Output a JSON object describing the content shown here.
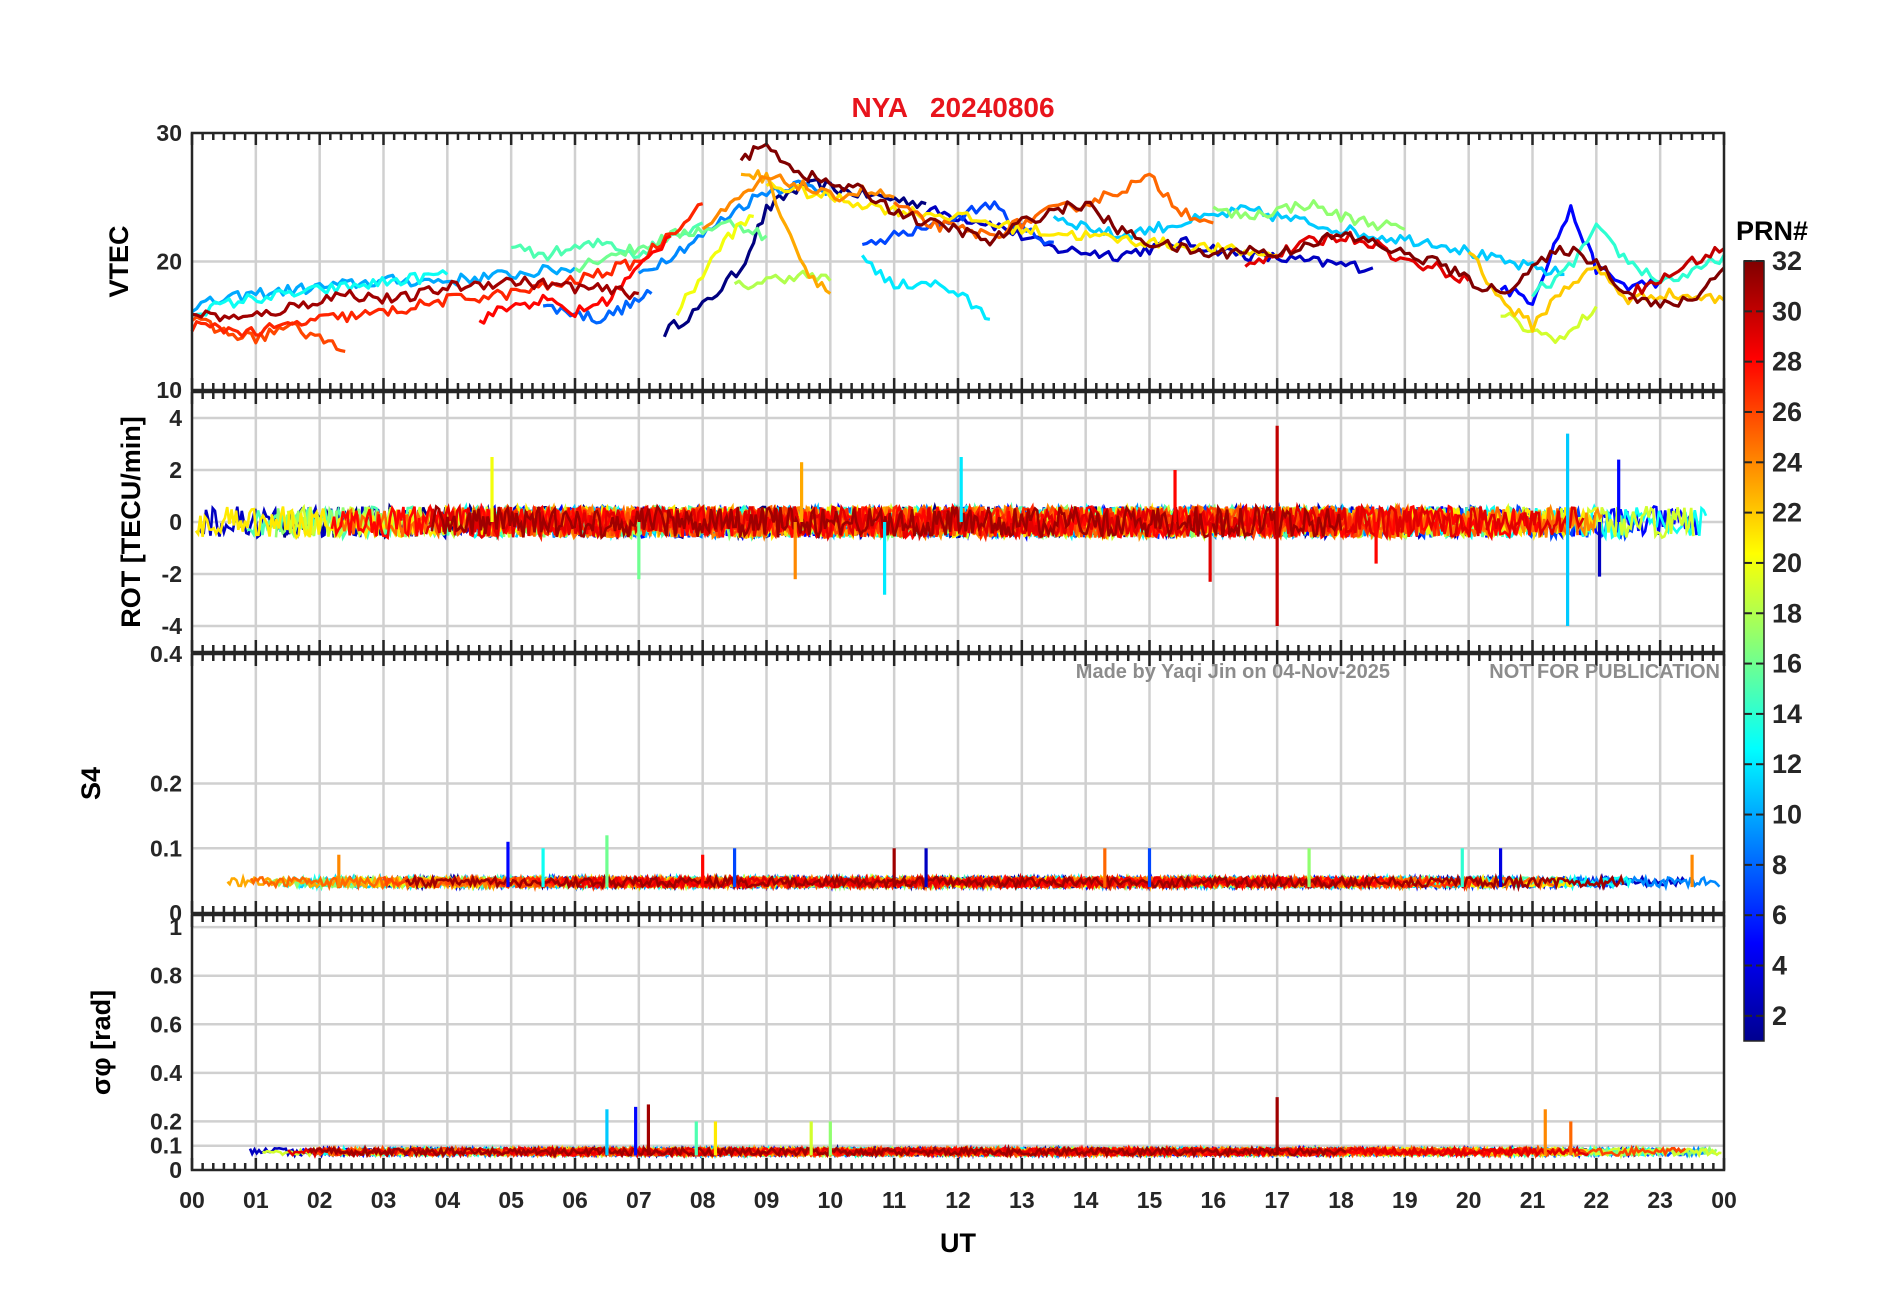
{
  "title": {
    "station": "NYA",
    "date": "20240806",
    "color": "#e8141c"
  },
  "watermark": {
    "author": "Made by Yaqi Jin on 04-Nov-2025",
    "notice": "NOT FOR PUBLICATION"
  },
  "colorbar": {
    "label": "PRN#",
    "ticks": [
      "2",
      "4",
      "6",
      "8",
      "10",
      "12",
      "14",
      "16",
      "18",
      "20",
      "22",
      "24",
      "26",
      "28",
      "30",
      "32"
    ],
    "range": [
      1,
      32
    ],
    "colormap": "jet"
  },
  "chart_data": [
    {
      "type": "line",
      "name": "vtec",
      "ylabel": "VTEC",
      "ylim": [
        10,
        30
      ],
      "yticks": [
        "10",
        "20",
        "30"
      ],
      "xlim": [
        0,
        24
      ],
      "xlabel": "",
      "grid": true,
      "series": [
        {
          "prn": 1,
          "x": [
            7.4,
            8.0,
            8.6,
            9.0,
            9.4,
            9.8,
            10.2,
            10.8,
            11.5
          ],
          "values": [
            14.5,
            16.5,
            19.5,
            24.0,
            25.5,
            26.0,
            25.5,
            25.0,
            24.5
          ]
        },
        {
          "prn": 3,
          "x": [
            11.5,
            12.5,
            13.5,
            14.5,
            15.5,
            16.5,
            17.5,
            18.5
          ],
          "values": [
            24.0,
            23.0,
            21.0,
            20.5,
            21.5,
            20.5,
            20.0,
            19.5
          ]
        },
        {
          "prn": 5,
          "x": [
            20.5,
            21.0,
            21.4,
            21.6,
            22.0,
            22.5,
            23.0
          ],
          "values": [
            18.0,
            17.0,
            22.0,
            24.0,
            19.5,
            18.0,
            18.5
          ]
        },
        {
          "prn": 7,
          "x": [
            10.5,
            11.0,
            11.5,
            12.0,
            12.5,
            13.0,
            13.5
          ],
          "values": [
            21.0,
            22.0,
            22.5,
            23.5,
            24.5,
            22.5,
            21.5
          ]
        },
        {
          "prn": 8,
          "x": [
            5.5,
            6.0,
            6.4,
            6.8,
            7.2
          ],
          "values": [
            16.5,
            16.0,
            15.5,
            16.5,
            17.5
          ]
        },
        {
          "prn": 9,
          "x": [
            7.0,
            7.5,
            8.0,
            8.5,
            9.0,
            9.5,
            10.0
          ],
          "values": [
            19.0,
            20.5,
            22.0,
            24.0,
            25.5,
            26.0,
            25.5
          ]
        },
        {
          "prn": 10,
          "x": [
            0.0,
            1.0,
            2.0,
            3.0,
            4.0,
            5.0,
            6.0
          ],
          "values": [
            16.5,
            17.5,
            18.0,
            18.5,
            18.5,
            19.0,
            19.5
          ]
        },
        {
          "prn": 11,
          "x": [
            13.5,
            14.5,
            15.5,
            16.5,
            17.5,
            18.5,
            19.5,
            20.5,
            21.5
          ],
          "values": [
            23.5,
            22.0,
            23.0,
            24.0,
            23.0,
            22.0,
            21.5,
            20.0,
            19.0
          ]
        },
        {
          "prn": 12,
          "x": [
            10.5,
            11.0,
            11.5,
            12.0,
            12.5
          ],
          "values": [
            20.5,
            18.0,
            18.5,
            17.5,
            15.5
          ]
        },
        {
          "prn": 13,
          "x": [
            0.0,
            0.8,
            1.6,
            2.4,
            3.2,
            4.0
          ],
          "values": [
            16.0,
            17.0,
            17.5,
            18.0,
            18.5,
            19.0
          ]
        },
        {
          "prn": 14,
          "x": [
            21.0,
            21.5,
            22.0,
            22.5,
            23.0,
            23.5,
            24.0
          ],
          "values": [
            17.5,
            19.0,
            22.5,
            20.0,
            18.5,
            19.0,
            20.5
          ]
        },
        {
          "prn": 15,
          "x": [
            5.0,
            5.5,
            6.0,
            6.5,
            7.0,
            7.5,
            8.0
          ],
          "values": [
            21.0,
            20.5,
            21.0,
            21.5,
            20.5,
            22.0,
            23.0
          ]
        },
        {
          "prn": 16,
          "x": [
            6.0,
            6.5,
            7.0,
            7.5,
            8.0,
            8.5,
            9.0
          ],
          "values": [
            19.5,
            20.5,
            21.0,
            22.0,
            22.5,
            23.0,
            22.0
          ]
        },
        {
          "prn": 17,
          "x": [
            16.0,
            16.5,
            17.0,
            17.5,
            18.0,
            18.5,
            19.0
          ],
          "values": [
            24.0,
            23.5,
            24.0,
            24.5,
            23.5,
            23.0,
            22.5
          ]
        },
        {
          "prn": 18,
          "x": [
            8.5,
            9.0,
            9.5,
            10.0
          ],
          "values": [
            18.0,
            18.5,
            19.0,
            18.5
          ]
        },
        {
          "prn": 19,
          "x": [
            20.5,
            21.0,
            21.5,
            22.0
          ],
          "values": [
            16.0,
            14.5,
            14.0,
            16.5
          ]
        },
        {
          "prn": 20,
          "x": [
            7.6,
            8.0,
            8.4,
            8.8
          ],
          "values": [
            16.0,
            19.0,
            22.0,
            23.5
          ]
        },
        {
          "prn": 21,
          "x": [
            9.0,
            10.0,
            11.0,
            12.0,
            13.0,
            14.0,
            15.0,
            16.0,
            17.0
          ],
          "values": [
            26.0,
            25.0,
            24.0,
            23.5,
            22.5,
            22.0,
            21.5,
            21.0,
            20.5
          ]
        },
        {
          "prn": 22,
          "x": [
            20.0,
            20.5,
            21.0,
            21.5,
            22.0,
            22.5,
            23.0,
            24.0
          ],
          "values": [
            21.0,
            17.0,
            15.0,
            18.0,
            19.5,
            17.0,
            17.5,
            17.0
          ]
        },
        {
          "prn": 23,
          "x": [
            8.6,
            9.0,
            9.3,
            9.6,
            10.0
          ],
          "values": [
            27.0,
            26.5,
            23.0,
            19.5,
            17.5
          ]
        },
        {
          "prn": 24,
          "x": [
            8.0,
            8.5,
            9.0,
            9.5,
            10.0,
            10.5,
            11.0
          ],
          "values": [
            22.5,
            24.5,
            26.5,
            26.0,
            25.0,
            25.5,
            25.0
          ]
        },
        {
          "prn": 25,
          "x": [
            11.0,
            11.5,
            12.0,
            12.5,
            13.0,
            13.5,
            14.0,
            14.5,
            15.0,
            15.5,
            16.0
          ],
          "values": [
            24.5,
            23.0,
            22.5,
            22.0,
            23.0,
            24.0,
            24.5,
            25.5,
            26.5,
            24.0,
            23.0
          ]
        },
        {
          "prn": 26,
          "x": [
            0.0,
            0.5,
            1.0,
            1.5,
            2.0,
            2.4
          ],
          "values": [
            15.5,
            14.5,
            14.0,
            15.0,
            14.0,
            13.0
          ]
        },
        {
          "prn": 27,
          "x": [
            0.0,
            1.0,
            2.0,
            3.0,
            4.0,
            5.0,
            6.0,
            7.0,
            8.0
          ],
          "values": [
            15.0,
            14.5,
            15.5,
            16.0,
            17.0,
            17.5,
            18.5,
            20.0,
            24.5
          ]
        },
        {
          "prn": 28,
          "x": [
            4.5,
            5.0,
            5.5,
            6.0,
            6.5,
            7.0,
            7.5
          ],
          "values": [
            15.5,
            16.5,
            17.0,
            16.0,
            17.0,
            19.5,
            22.0
          ]
        },
        {
          "prn": 29,
          "x": [
            16.5,
            17.0,
            17.5,
            18.0,
            18.5,
            19.0,
            19.5,
            20.0
          ],
          "values": [
            20.0,
            20.5,
            21.5,
            22.0,
            21.5,
            20.0,
            19.5,
            18.5
          ]
        },
        {
          "prn": 30,
          "x": [
            22.5,
            23.0,
            23.5,
            24.0
          ],
          "values": [
            17.5,
            18.5,
            20.0,
            21.0
          ]
        },
        {
          "prn": 31,
          "x": [
            0.0,
            0.8,
            1.6,
            2.4,
            3.2,
            4.0,
            5.0,
            6.0,
            7.0
          ],
          "values": [
            16.0,
            15.5,
            16.5,
            17.5,
            17.0,
            18.0,
            18.5,
            18.0,
            17.5
          ]
        },
        {
          "prn": 32,
          "x": [
            8.6,
            9.0,
            9.5,
            10.0,
            10.5,
            11.0,
            11.5,
            12.0,
            12.5,
            13.0,
            13.5,
            14.0,
            14.5,
            15.0,
            15.5,
            16.0,
            16.5,
            17.0,
            17.5,
            18.0,
            18.5,
            19.0,
            19.5,
            20.0,
            20.5,
            21.0,
            21.5,
            22.0,
            22.5,
            23.0,
            23.5,
            24.0
          ],
          "values": [
            28.0,
            29.0,
            27.0,
            26.0,
            25.5,
            24.0,
            23.0,
            22.5,
            21.5,
            23.0,
            24.0,
            24.5,
            22.5,
            21.5,
            21.0,
            20.5,
            21.0,
            20.5,
            21.5,
            22.0,
            21.5,
            20.5,
            20.0,
            18.5,
            17.5,
            19.5,
            21.0,
            20.0,
            17.5,
            16.5,
            17.0,
            19.5
          ]
        }
      ]
    },
    {
      "type": "line",
      "name": "rot",
      "ylabel": "ROT [TECU/min]",
      "ylim": [
        -5,
        5
      ],
      "yticks": [
        "-4",
        "-2",
        "0",
        "2",
        "4"
      ],
      "xlim": [
        0,
        24
      ],
      "grid": true,
      "noise_baseline": 0,
      "noise_amplitude": 0.6,
      "spikes": [
        {
          "x": 17.0,
          "value": 3.7,
          "prn": 30
        },
        {
          "x": 17.0,
          "value": -4.0,
          "prn": 30
        },
        {
          "x": 21.55,
          "value": 3.4,
          "prn": 11
        },
        {
          "x": 21.55,
          "value": -4.0,
          "prn": 11
        },
        {
          "x": 10.85,
          "value": -2.8,
          "prn": 12
        },
        {
          "x": 12.05,
          "value": 2.5,
          "prn": 12
        },
        {
          "x": 4.7,
          "value": 2.5,
          "prn": 20
        },
        {
          "x": 22.35,
          "value": 2.4,
          "prn": 5
        },
        {
          "x": 22.05,
          "value": -2.1,
          "prn": 3
        },
        {
          "x": 9.55,
          "value": 2.3,
          "prn": 23
        },
        {
          "x": 9.45,
          "value": -2.2,
          "prn": 24
        },
        {
          "x": 15.4,
          "value": 2.0,
          "prn": 28
        },
        {
          "x": 15.95,
          "value": -2.3,
          "prn": 29
        },
        {
          "x": 7.0,
          "value": -2.2,
          "prn": 16
        },
        {
          "x": 18.55,
          "value": -1.6,
          "prn": 28
        }
      ]
    },
    {
      "type": "line",
      "name": "s4",
      "ylabel": "S4",
      "ylim": [
        0,
        0.4
      ],
      "yticks": [
        "0",
        "0.1",
        "0.2",
        "0.4"
      ],
      "xlim": [
        0,
        24
      ],
      "grid": true,
      "noise_baseline": 0.04,
      "noise_amplitude": 0.015,
      "spikes": [
        {
          "x": 4.95,
          "value": 0.11,
          "prn": 5
        },
        {
          "x": 6.5,
          "value": 0.12,
          "prn": 16
        },
        {
          "x": 5.5,
          "value": 0.1,
          "prn": 13
        },
        {
          "x": 8.5,
          "value": 0.1,
          "prn": 7
        },
        {
          "x": 11.0,
          "value": 0.1,
          "prn": 31
        },
        {
          "x": 11.5,
          "value": 0.1,
          "prn": 3
        },
        {
          "x": 14.3,
          "value": 0.1,
          "prn": 25
        },
        {
          "x": 15.0,
          "value": 0.1,
          "prn": 7
        },
        {
          "x": 17.5,
          "value": 0.1,
          "prn": 17
        },
        {
          "x": 20.5,
          "value": 0.1,
          "prn": 4
        },
        {
          "x": 19.9,
          "value": 0.1,
          "prn": 14
        },
        {
          "x": 23.5,
          "value": 0.09,
          "prn": 24
        },
        {
          "x": 2.3,
          "value": 0.09,
          "prn": 24
        },
        {
          "x": 8.0,
          "value": 0.09,
          "prn": 28
        }
      ]
    },
    {
      "type": "line",
      "name": "sigma-phi",
      "ylabel": "σφ [rad]",
      "ylim": [
        0,
        1.05
      ],
      "yticks": [
        "0",
        "0.1",
        "0.2",
        "0.4",
        "0.6",
        "0.8",
        "1"
      ],
      "xlim": [
        0,
        24
      ],
      "grid": true,
      "noise_baseline": 0.06,
      "noise_amplitude": 0.03,
      "spikes": [
        {
          "x": 7.15,
          "value": 0.27,
          "prn": 31
        },
        {
          "x": 17.0,
          "value": 0.3,
          "prn": 31
        },
        {
          "x": 6.5,
          "value": 0.25,
          "prn": 11
        },
        {
          "x": 6.95,
          "value": 0.26,
          "prn": 5
        },
        {
          "x": 21.2,
          "value": 0.25,
          "prn": 24
        },
        {
          "x": 21.6,
          "value": 0.2,
          "prn": 25
        },
        {
          "x": 9.7,
          "value": 0.2,
          "prn": 19
        },
        {
          "x": 10.0,
          "value": 0.2,
          "prn": 17
        },
        {
          "x": 7.9,
          "value": 0.2,
          "prn": 15
        },
        {
          "x": 8.2,
          "value": 0.2,
          "prn": 21
        }
      ]
    }
  ],
  "xaxis": {
    "label": "UT",
    "ticks": [
      "00",
      "01",
      "02",
      "03",
      "04",
      "05",
      "06",
      "07",
      "08",
      "09",
      "10",
      "11",
      "12",
      "13",
      "14",
      "15",
      "16",
      "17",
      "18",
      "19",
      "20",
      "21",
      "22",
      "23",
      "00"
    ]
  }
}
